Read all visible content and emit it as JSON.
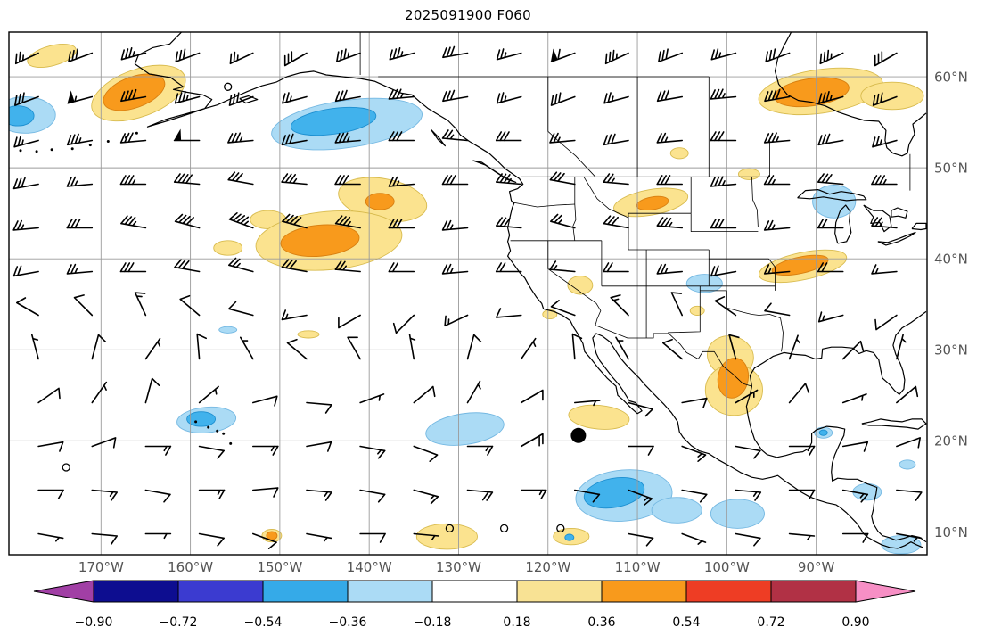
{
  "title": "2025091900 F060",
  "chart_data": {
    "type": "heatmap",
    "title": "2025091900 F060",
    "subtitle": "",
    "x_axis": {
      "tick_lons": [
        -170,
        -160,
        -150,
        -140,
        -130,
        -120,
        -110,
        -100,
        -90
      ],
      "tick_labels": [
        "170°W",
        "160°W",
        "150°W",
        "140°W",
        "130°W",
        "120°W",
        "110°W",
        "100°W",
        "90°W"
      ]
    },
    "y_axis": {
      "tick_lats": [
        10,
        20,
        30,
        40,
        50,
        60
      ],
      "tick_labels": [
        "10°N",
        "20°N",
        "30°N",
        "40°N",
        "50°N",
        "60°N"
      ]
    },
    "extent": {
      "lon_min": -180.3,
      "lon_max": -77.6,
      "lat_min": 7.5,
      "lat_max": 64.9
    },
    "grid_on": true,
    "colorbar": {
      "orientation": "horizontal",
      "tick_labels": [
        "−0.90",
        "−0.72",
        "−0.54",
        "−0.36",
        "−0.18",
        "0.18",
        "0.36",
        "0.54",
        "0.72",
        "0.90"
      ],
      "segment_colors": [
        "#0d0d90",
        "#3b3bd0",
        "#35aae8",
        "#abdbf5",
        "#ffffff",
        "#f8e294",
        "#f89a1c",
        "#ee3d24",
        "#b13145"
      ],
      "under_color": "#a13fa5",
      "over_color": "#f78fc5"
    },
    "shading_colors": {
      "yellow": "#fbe38f",
      "orange": "#f89a1c",
      "lightblue": "#abdbf5",
      "cyan": "#41b2ec"
    },
    "anomaly_regions": [
      [
        -175.5,
        62.3,
        2.8,
        1.1,
        -15,
        "yellow"
      ],
      [
        -178.5,
        55.8,
        3.4,
        2.0,
        0,
        "lightblue"
      ],
      [
        -179.3,
        55.7,
        1.8,
        1.1,
        0,
        "cyan"
      ],
      [
        -165.8,
        58.2,
        5.5,
        2.6,
        -20,
        "yellow"
      ],
      [
        -166.3,
        58.3,
        3.6,
        1.7,
        -20,
        "orange"
      ],
      [
        -142.5,
        54.8,
        8.5,
        2.6,
        -8,
        "lightblue"
      ],
      [
        -144.0,
        55.1,
        4.8,
        1.4,
        -8,
        "cyan"
      ],
      [
        -151.3,
        44.3,
        2.0,
        1.0,
        0,
        "yellow"
      ],
      [
        -138.5,
        46.5,
        5.0,
        2.3,
        10,
        "yellow"
      ],
      [
        -138.8,
        46.3,
        1.6,
        0.9,
        0,
        "orange"
      ],
      [
        -144.5,
        42.0,
        8.2,
        3.2,
        -5,
        "yellow"
      ],
      [
        -145.5,
        42.0,
        4.4,
        1.7,
        -5,
        "orange"
      ],
      [
        -155.8,
        41.2,
        1.6,
        0.8,
        0,
        "yellow"
      ],
      [
        -108.5,
        46.2,
        4.2,
        1.4,
        -10,
        "yellow"
      ],
      [
        -108.3,
        46.1,
        1.8,
        0.7,
        -10,
        "orange"
      ],
      [
        -89.5,
        58.4,
        7.0,
        2.4,
        -8,
        "yellow"
      ],
      [
        -90.5,
        58.3,
        4.2,
        1.5,
        -8,
        "orange"
      ],
      [
        -81.5,
        57.9,
        3.5,
        1.5,
        0,
        "yellow"
      ],
      [
        -97.5,
        49.3,
        1.2,
        0.6,
        0,
        "yellow"
      ],
      [
        -105.3,
        51.6,
        1.0,
        0.6,
        0,
        "yellow"
      ],
      [
        -91.5,
        39.2,
        5.0,
        1.5,
        -12,
        "yellow"
      ],
      [
        -91.8,
        39.3,
        3.2,
        0.9,
        -12,
        "orange"
      ],
      [
        -88.0,
        46.3,
        2.4,
        1.8,
        0,
        "lightblue"
      ],
      [
        -102.5,
        37.3,
        2.0,
        1.0,
        0,
        "lightblue"
      ],
      [
        -116.4,
        37.1,
        1.4,
        1.0,
        0,
        "yellow"
      ],
      [
        -119.8,
        33.9,
        0.8,
        0.5,
        0,
        "yellow"
      ],
      [
        -103.3,
        34.3,
        0.8,
        0.5,
        0,
        "yellow"
      ],
      [
        -146.8,
        31.7,
        1.2,
        0.4,
        0,
        "yellow"
      ],
      [
        -155.8,
        32.2,
        1.0,
        0.35,
        0,
        "lightblue"
      ],
      [
        -99.6,
        29.3,
        2.6,
        2.2,
        15,
        "yellow"
      ],
      [
        -99.2,
        25.6,
        3.2,
        2.8,
        0,
        "yellow"
      ],
      [
        -99.3,
        26.9,
        1.7,
        2.2,
        10,
        "orange"
      ],
      [
        -114.3,
        22.6,
        3.4,
        1.3,
        5,
        "yellow"
      ],
      [
        -158.2,
        22.3,
        3.3,
        1.4,
        -5,
        "lightblue"
      ],
      [
        -158.8,
        22.4,
        1.6,
        0.8,
        0,
        "cyan"
      ],
      [
        -129.3,
        21.3,
        4.4,
        1.7,
        -8,
        "lightblue"
      ],
      [
        -111.5,
        14.0,
        5.4,
        2.8,
        -5,
        "lightblue"
      ],
      [
        -112.6,
        14.3,
        3.4,
        1.6,
        -10,
        "cyan"
      ],
      [
        -105.6,
        12.4,
        2.8,
        1.4,
        0,
        "lightblue"
      ],
      [
        -98.8,
        12.0,
        3.0,
        1.6,
        0,
        "lightblue"
      ],
      [
        -131.3,
        9.5,
        3.4,
        1.4,
        0,
        "yellow"
      ],
      [
        -117.4,
        9.5,
        2.0,
        0.9,
        0,
        "yellow"
      ],
      [
        -117.6,
        9.4,
        0.5,
        0.35,
        0,
        "cyan"
      ],
      [
        -150.9,
        9.6,
        1.1,
        0.7,
        0,
        "yellow"
      ],
      [
        -150.9,
        9.6,
        0.6,
        0.45,
        0,
        "orange"
      ],
      [
        -89.2,
        20.9,
        1.0,
        0.6,
        0,
        "lightblue"
      ],
      [
        -89.2,
        20.9,
        0.45,
        0.3,
        0,
        "cyan"
      ],
      [
        -84.3,
        14.4,
        1.6,
        0.9,
        0,
        "lightblue"
      ],
      [
        -79.8,
        17.4,
        0.9,
        0.5,
        0,
        "lightblue"
      ],
      [
        -80.5,
        8.6,
        2.2,
        1.0,
        0,
        "lightblue"
      ]
    ],
    "wind_field": {
      "lons": [
        -177,
        -171,
        -165,
        -159,
        -153,
        -147,
        -141,
        -135,
        -129,
        -123,
        -117,
        -111,
        -105,
        -99,
        -93,
        -87,
        -81
      ],
      "lats": [
        62.6,
        57.8,
        53,
        48.2,
        43.4,
        38.6,
        33.8,
        29,
        24.2,
        19.4,
        14.6,
        9.8
      ],
      "dir_from_deg": [
        [
          245,
          250,
          255,
          250,
          245,
          240,
          250,
          255,
          260,
          255,
          250,
          245,
          250,
          255,
          250,
          245,
          240
        ],
        [
          250,
          255,
          260,
          255,
          250,
          255,
          260,
          265,
          260,
          255,
          250,
          255,
          260,
          265,
          260,
          255,
          250
        ],
        [
          255,
          260,
          265,
          270,
          265,
          260,
          265,
          270,
          275,
          270,
          265,
          260,
          265,
          270,
          265,
          260,
          255
        ],
        [
          260,
          265,
          270,
          275,
          280,
          275,
          270,
          265,
          270,
          275,
          280,
          275,
          270,
          265,
          270,
          275,
          270
        ],
        [
          265,
          270,
          280,
          285,
          290,
          285,
          280,
          270,
          265,
          275,
          285,
          280,
          275,
          270,
          265,
          270,
          275
        ],
        [
          260,
          265,
          270,
          280,
          285,
          280,
          275,
          270,
          265,
          270,
          275,
          270,
          265,
          260,
          265,
          270,
          265
        ],
        [
          300,
          315,
          335,
          310,
          285,
          260,
          240,
          225,
          245,
          265,
          290,
          315,
          335,
          305,
          280,
          255,
          235
        ],
        [
          345,
          15,
          35,
          355,
          330,
          310,
          330,
          350,
          15,
          35,
          355,
          330,
          310,
          345,
          20,
          45,
          15
        ],
        [
          55,
          35,
          15,
          50,
          75,
          95,
          70,
          50,
          30,
          60,
          85,
          105,
          80,
          60,
          40,
          70,
          50
        ],
        [
          80,
          70,
          90,
          100,
          90,
          80,
          100,
          110,
          90,
          60,
          45,
          90,
          110,
          100,
          90,
          80,
          70
        ],
        [
          90,
          95,
          100,
          90,
          85,
          95,
          100,
          105,
          95,
          90,
          100,
          110,
          100,
          95,
          90,
          100,
          95
        ],
        [
          100,
          95,
          90,
          100,
          110,
          100,
          90,
          95,
          105,
          100,
          90,
          100,
          110,
          100,
          95,
          90,
          100
        ]
      ],
      "speed_kt": [
        [
          25,
          30,
          35,
          30,
          25,
          30,
          35,
          35,
          30,
          25,
          60,
          35,
          30,
          25,
          30,
          35,
          30
        ],
        [
          30,
          55,
          40,
          35,
          30,
          25,
          30,
          35,
          30,
          25,
          30,
          25,
          30,
          35,
          40,
          35,
          30
        ],
        [
          25,
          35,
          30,
          50,
          35,
          30,
          35,
          30,
          25,
          30,
          25,
          30,
          25,
          30,
          35,
          30,
          25
        ],
        [
          30,
          25,
          35,
          40,
          30,
          35,
          30,
          25,
          30,
          35,
          30,
          25,
          30,
          35,
          25,
          30,
          35
        ],
        [
          25,
          30,
          35,
          40,
          45,
          40,
          35,
          30,
          25,
          30,
          25,
          30,
          35,
          30,
          25,
          20,
          25
        ],
        [
          20,
          25,
          30,
          30,
          25,
          30,
          25,
          20,
          25,
          20,
          15,
          20,
          25,
          20,
          15,
          20,
          15
        ],
        [
          10,
          10,
          15,
          10,
          10,
          15,
          10,
          10,
          15,
          10,
          10,
          15,
          10,
          10,
          10,
          15,
          10
        ],
        [
          5,
          10,
          5,
          10,
          5,
          10,
          10,
          5,
          10,
          5,
          10,
          5,
          10,
          10,
          5,
          10,
          5
        ],
        [
          10,
          5,
          10,
          5,
          10,
          10,
          5,
          10,
          5,
          10,
          5,
          10,
          10,
          5,
          10,
          5,
          10
        ],
        [
          10,
          10,
          15,
          10,
          15,
          10,
          15,
          10,
          15,
          20,
          15,
          10,
          15,
          10,
          15,
          10,
          10
        ],
        [
          10,
          15,
          10,
          15,
          10,
          15,
          10,
          15,
          20,
          15,
          10,
          15,
          10,
          15,
          10,
          15,
          10
        ],
        [
          5,
          10,
          5,
          10,
          8,
          5,
          10,
          5,
          0,
          0,
          0,
          8,
          5,
          10,
          5,
          8,
          5
        ]
      ]
    },
    "calm_markers": [
      [
        -173.9,
        17.1
      ],
      [
        -155.8,
        58.9
      ],
      [
        -131.0,
        10.4
      ],
      [
        -124.9,
        10.4
      ],
      [
        -118.6,
        10.4
      ]
    ],
    "storm_marker": {
      "lon": -116.6,
      "lat": 20.6
    }
  }
}
